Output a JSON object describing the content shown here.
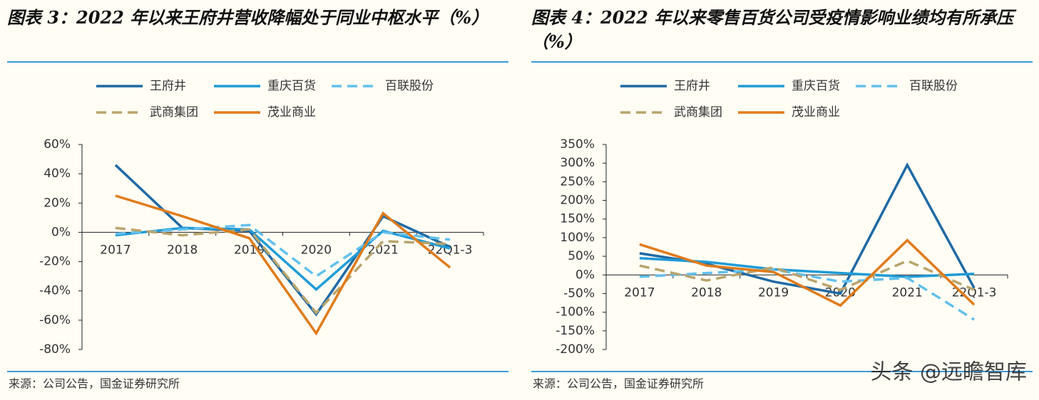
{
  "chart_data": [
    {
      "type": "line",
      "title": "图表 3：2022 年以来王府井营收降幅处于同业中枢水平（%）",
      "categories": [
        "2017",
        "2018",
        "2019",
        "2020",
        "2021",
        "22Q1-3"
      ],
      "series": [
        {
          "name": "王府井",
          "color": "#1f6aa5",
          "style": "solid",
          "values": [
            46,
            3,
            1,
            -56,
            11,
            -10
          ]
        },
        {
          "name": "重庆百货",
          "color": "#1f9bd7",
          "style": "solid",
          "values": [
            -2,
            3,
            2,
            -39,
            1,
            -11
          ]
        },
        {
          "name": "百联股份",
          "color": "#62c0ec",
          "style": "dashed",
          "values": [
            -1,
            2,
            5,
            -30,
            0,
            -5
          ]
        },
        {
          "name": "武商集团",
          "color": "#b9a46c",
          "style": "dashed",
          "values": [
            3,
            -2,
            2,
            -55,
            -6,
            -8
          ]
        },
        {
          "name": "茂业商业",
          "color": "#e07b1a",
          "style": "solid",
          "values": [
            25,
            11,
            -4,
            -69,
            13,
            -24
          ]
        }
      ],
      "ylim": [
        -80,
        60
      ],
      "yticks": [
        {
          "value": -80,
          "label": "-80%"
        },
        {
          "value": -60,
          "label": "-60%"
        },
        {
          "value": -40,
          "label": "-40%"
        },
        {
          "value": -20,
          "label": "-20%"
        },
        {
          "value": 0,
          "label": "0%"
        },
        {
          "value": 20,
          "label": "20%"
        },
        {
          "value": 40,
          "label": "40%"
        },
        {
          "value": 60,
          "label": "60%"
        }
      ],
      "grid": false,
      "source": "来源：公司公告，国金证券研究所"
    },
    {
      "type": "line",
      "title": "图表 4：2022 年以来零售百货公司受疫情影响业绩均有所承压（%）",
      "categories": [
        "2017",
        "2018",
        "2019",
        "2020",
        "2021",
        "22Q1-3"
      ],
      "series": [
        {
          "name": "王府井",
          "color": "#1f6aa5",
          "style": "solid",
          "values": [
            58,
            30,
            -18,
            -50,
            295,
            -35
          ]
        },
        {
          "name": "重庆百货",
          "color": "#1f9bd7",
          "style": "solid",
          "values": [
            45,
            35,
            15,
            5,
            -5,
            3
          ]
        },
        {
          "name": "百联股份",
          "color": "#62c0ec",
          "style": "dashed",
          "values": [
            -5,
            5,
            15,
            -18,
            -8,
            -120
          ]
        },
        {
          "name": "武商集团",
          "color": "#b9a46c",
          "style": "dashed",
          "values": [
            25,
            -15,
            20,
            -40,
            38,
            -40
          ]
        },
        {
          "name": "茂业商业",
          "color": "#e07b1a",
          "style": "solid",
          "values": [
            82,
            25,
            8,
            -82,
            93,
            -80
          ]
        }
      ],
      "ylim": [
        -200,
        350
      ],
      "yticks": [
        {
          "value": -200,
          "label": "-200%"
        },
        {
          "value": -150,
          "label": "-150%"
        },
        {
          "value": -100,
          "label": "-100%"
        },
        {
          "value": -50,
          "label": "-50%"
        },
        {
          "value": 0,
          "label": "0%"
        },
        {
          "value": 50,
          "label": "50%"
        },
        {
          "value": 100,
          "label": "100%"
        },
        {
          "value": 150,
          "label": "150%"
        },
        {
          "value": 200,
          "label": "200%"
        },
        {
          "value": 250,
          "label": "250%"
        },
        {
          "value": 300,
          "label": "300%"
        },
        {
          "value": 350,
          "label": "350%"
        }
      ],
      "grid": false,
      "source": "来源：公司公告，国金证券研究所"
    }
  ],
  "watermark": "头条 @远瞻智库"
}
